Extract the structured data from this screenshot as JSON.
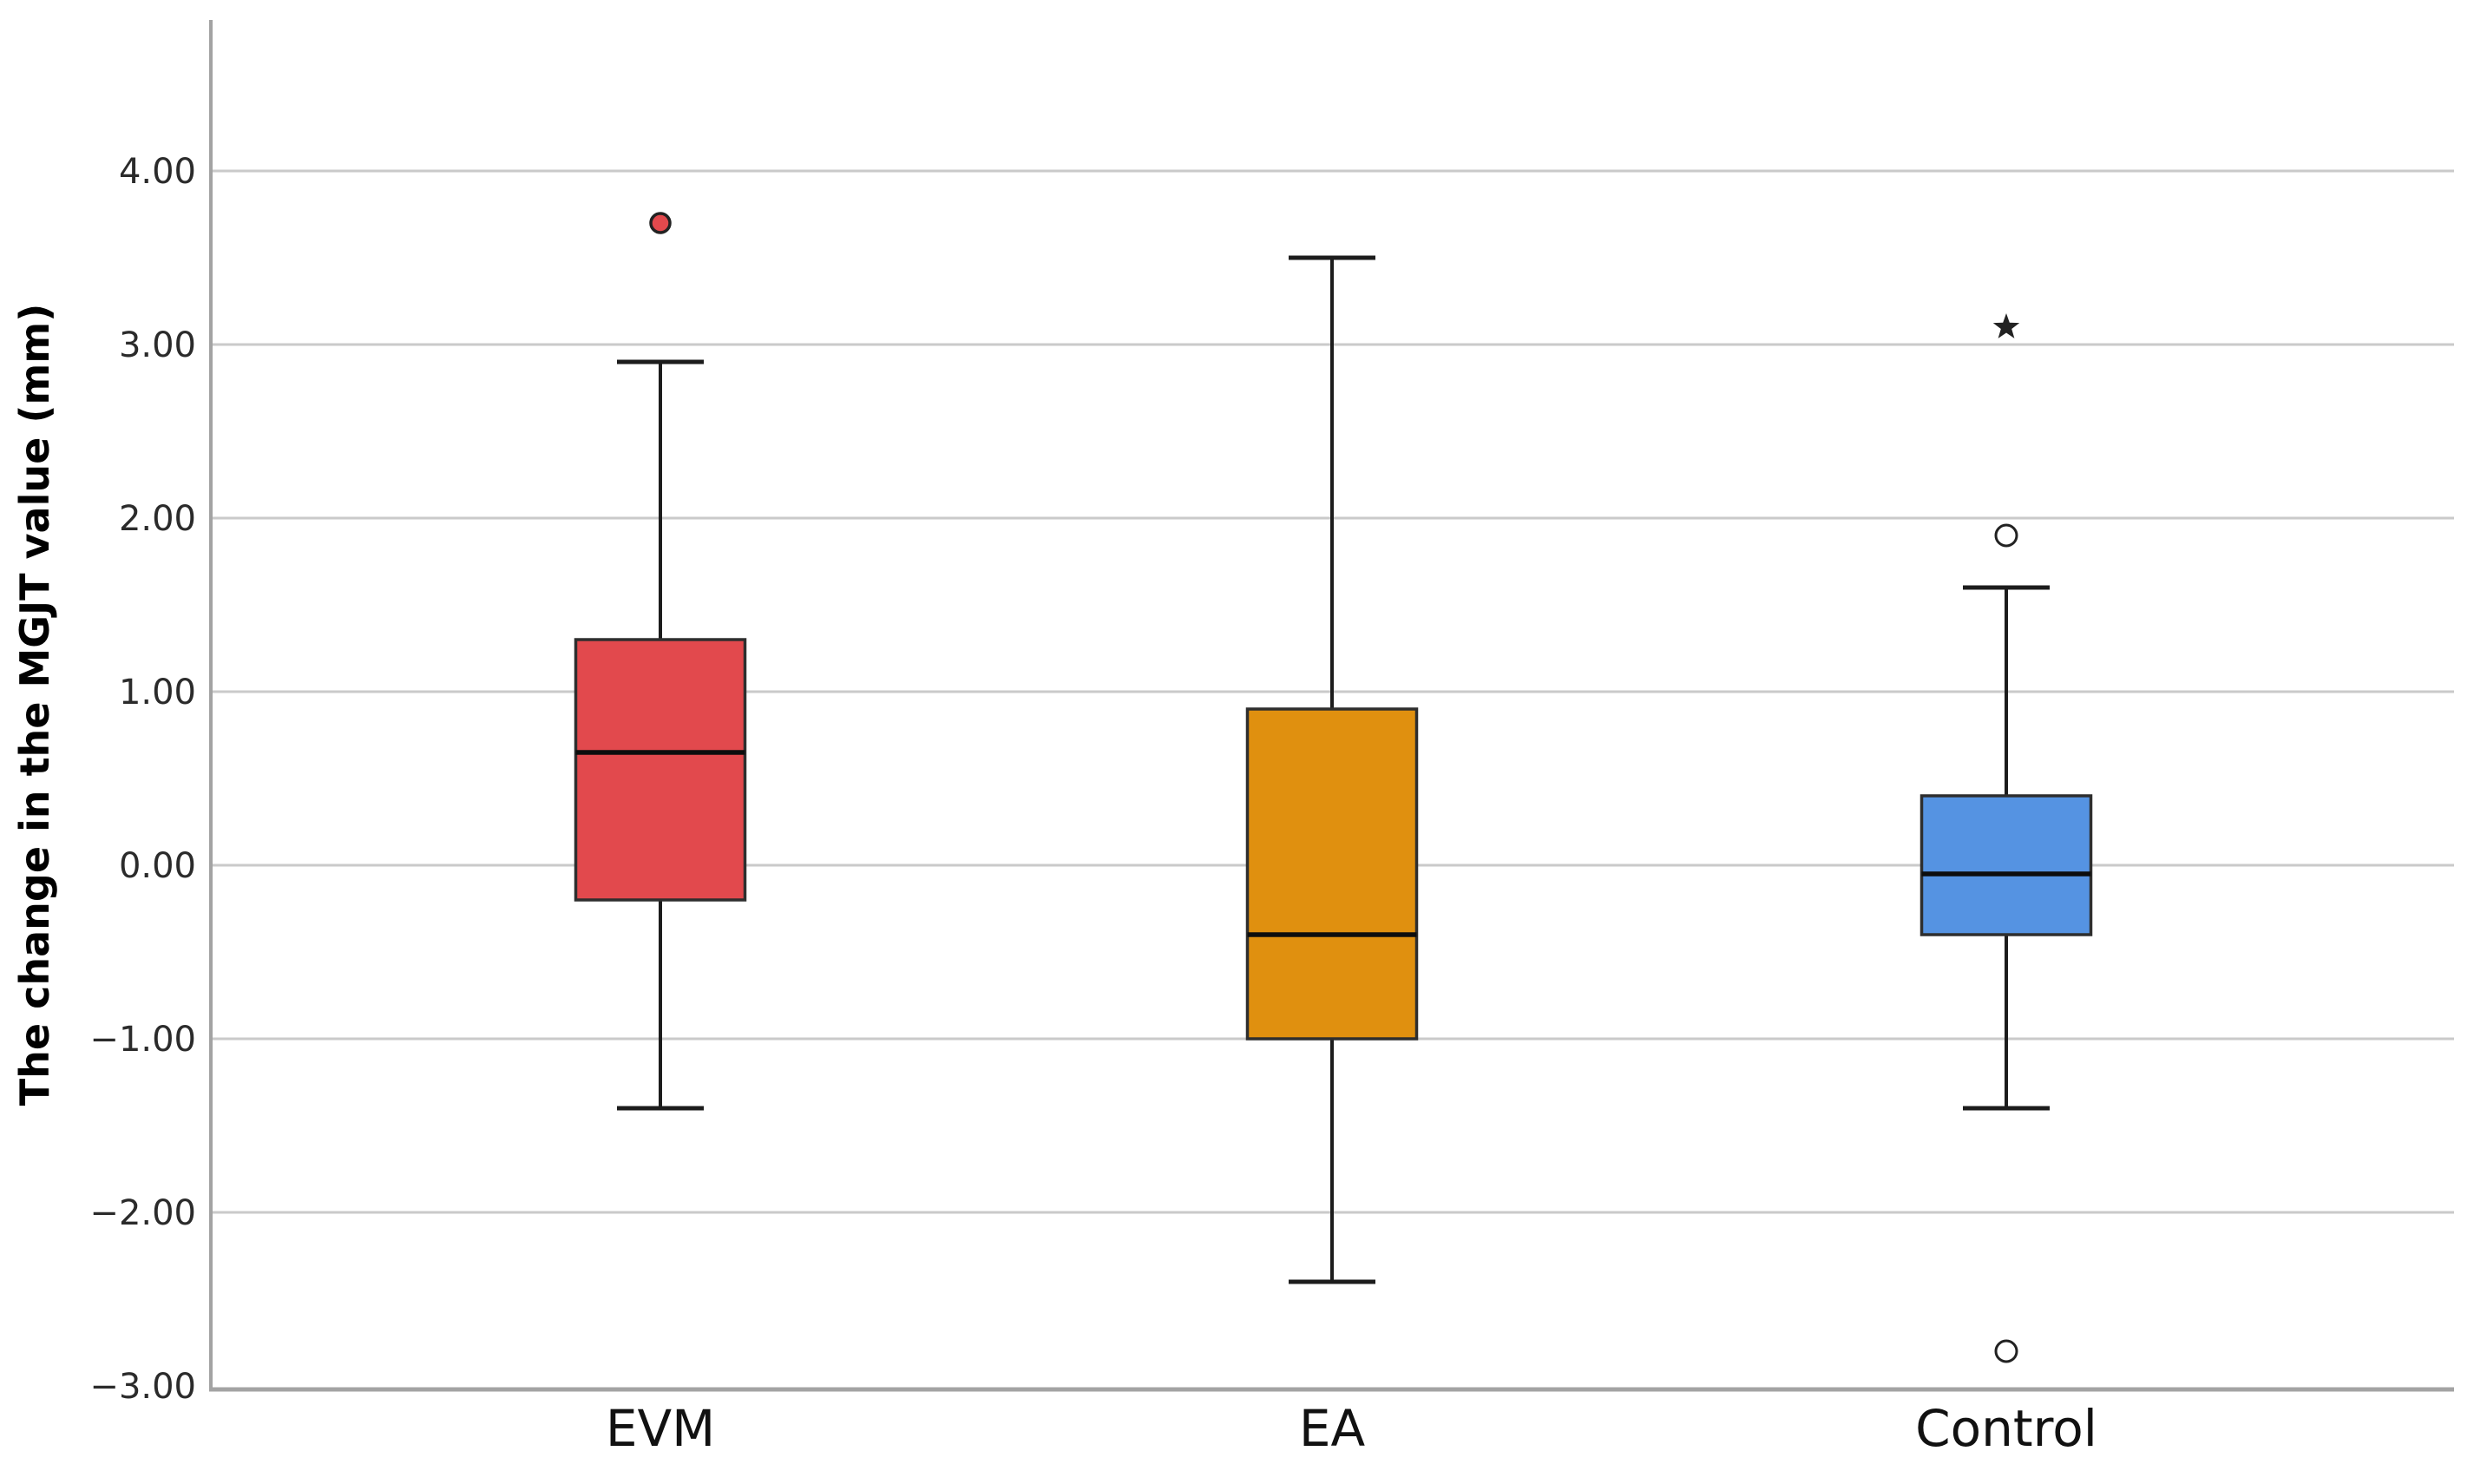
{
  "chart_data": {
    "type": "boxplot",
    "title": "",
    "xlabel": "",
    "ylabel": "The change in the MGJT value (mm)",
    "categories": [
      "EVM",
      "EA",
      "Control"
    ],
    "y_axis": {
      "min": -3.0,
      "max": 4.85,
      "ticks": [
        4.0,
        3.0,
        2.0,
        1.0,
        0.0,
        -1.0,
        -2.0,
        -3.0
      ],
      "tick_labels": [
        "4.00",
        "3.00",
        "2.00",
        "1.00",
        "0.00",
        "−1.00",
        "−2.00",
        "−3.00"
      ],
      "grid": true
    },
    "legend": "none",
    "series": [
      {
        "name": "EVM",
        "color": "#e2494d",
        "whisker_low": -1.4,
        "q1": -0.2,
        "median": 0.65,
        "q3": 1.3,
        "whisker_high": 2.9,
        "outliers": [
          {
            "value": 3.7,
            "symbol": "filled-circle"
          }
        ]
      },
      {
        "name": "EA",
        "color": "#e0900f",
        "whisker_low": -2.4,
        "q1": -1.0,
        "median": -0.4,
        "q3": 0.9,
        "whisker_high": 3.5,
        "outliers": []
      },
      {
        "name": "Control",
        "color": "#5593e2",
        "whisker_low": -1.4,
        "q1": -0.4,
        "median": -0.05,
        "q3": 0.4,
        "whisker_high": 1.6,
        "outliers": [
          {
            "value": 1.9,
            "symbol": "open-circle"
          },
          {
            "value": 3.1,
            "symbol": "star"
          },
          {
            "value": -2.8,
            "symbol": "open-circle"
          }
        ]
      }
    ],
    "style": {
      "background": "#ffffff",
      "gridline_color": "#cacaca",
      "axis_color": "#a3a3a3",
      "box_border_color": "#2e2e2e",
      "median_color": "#0d0d0d",
      "whisker_color": "#1c1c1c",
      "outlier_stroke_color": "#222222",
      "tick_label_color": "#2b2b2b",
      "category_label_color": "#111111"
    }
  }
}
